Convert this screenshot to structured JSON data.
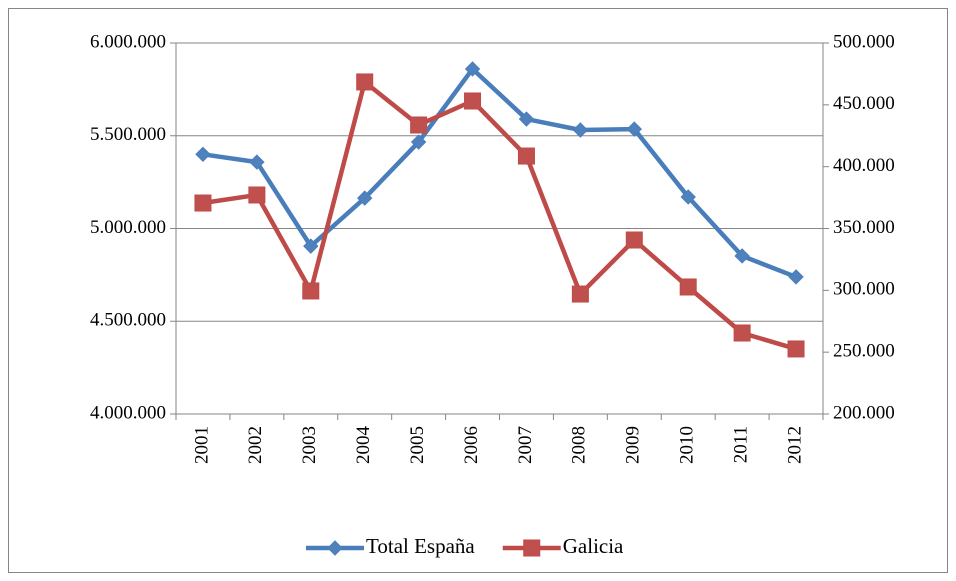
{
  "chart_data": {
    "type": "line",
    "categories": [
      "2001",
      "2002",
      "2003",
      "2004",
      "2005",
      "2006",
      "2007",
      "2008",
      "2009",
      "2010",
      "2011",
      "2012"
    ],
    "series": [
      {
        "name": "Total España",
        "color": "#4a7ebb",
        "marker_color": "#4f81bd",
        "marker": "diamond",
        "axis": "y",
        "values": [
          5400000,
          5358000,
          4905000,
          5164000,
          5466000,
          5860000,
          5590000,
          5531000,
          5536000,
          5170000,
          4852000,
          4739000
        ]
      },
      {
        "name": "Galicia",
        "color": "#be4b48",
        "marker_color": "#c0504d",
        "marker": "square",
        "axis": "y2",
        "values": [
          370600,
          377100,
          299500,
          468500,
          433700,
          453100,
          408600,
          297000,
          340700,
          302700,
          265500,
          252600
        ]
      }
    ],
    "ylim": [
      4000000,
      6000000
    ],
    "yticks": [
      {
        "value": 4000000,
        "label": "4.000.000"
      },
      {
        "value": 4500000,
        "label": "4.500.000"
      },
      {
        "value": 5000000,
        "label": "5.000.000"
      },
      {
        "value": 5500000,
        "label": "5.500.000"
      },
      {
        "value": 6000000,
        "label": "6.000.000"
      }
    ],
    "y2lim": [
      200000,
      500000
    ],
    "y2ticks": [
      {
        "value": 200000,
        "label": "200.000"
      },
      {
        "value": 250000,
        "label": "250.000"
      },
      {
        "value": 300000,
        "label": "300.000"
      },
      {
        "value": 350000,
        "label": "350.000"
      },
      {
        "value": 400000,
        "label": "400.000"
      },
      {
        "value": 450000,
        "label": "450.000"
      },
      {
        "value": 500000,
        "label": "500.000"
      }
    ],
    "grid": true,
    "legend": "bottom"
  }
}
